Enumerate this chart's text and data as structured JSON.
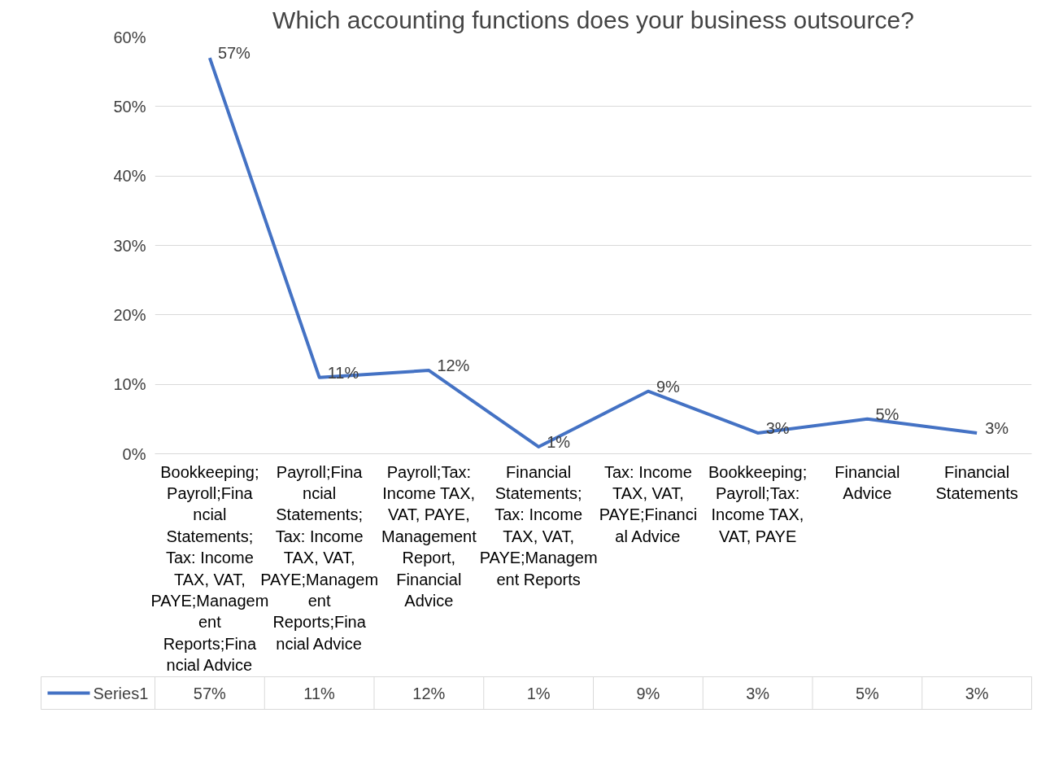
{
  "chart_data": {
    "type": "line",
    "title": "Which accounting functions does your business outsource?",
    "categories": [
      "Bookkeeping;Payroll;Financial Statements; Tax: Income TAX, VAT, PAYE;Management Reports;Financial Advice",
      "Payroll;Financial Statements; Tax: Income TAX, VAT, PAYE;Management Reports;Financial Advice",
      "Payroll;Tax: Income TAX, VAT, PAYE, Management Report, Financial Advice",
      "Financial Statements; Tax: Income TAX, VAT, PAYE;Management Reports",
      "Tax: Income TAX, VAT, PAYE;Financial Advice",
      "Bookkeeping;Payroll;Tax: Income TAX, VAT, PAYE",
      "Financial Advice",
      "Financial Statements"
    ],
    "series": [
      {
        "name": "Series1",
        "color": "#4472c4",
        "values": [
          57,
          11,
          12,
          1,
          9,
          3,
          5,
          3
        ],
        "value_labels": [
          "57%",
          "11%",
          "12%",
          "1%",
          "9%",
          "3%",
          "5%",
          "3%"
        ]
      }
    ],
    "ylim": [
      0,
      60
    ],
    "yticks": [
      {
        "value": 0,
        "label": "0%"
      },
      {
        "value": 10,
        "label": "10%"
      },
      {
        "value": 20,
        "label": "20%"
      },
      {
        "value": 30,
        "label": "30%"
      },
      {
        "value": 40,
        "label": "40%"
      },
      {
        "value": 50,
        "label": "50%"
      },
      {
        "value": 60,
        "label": "60%"
      }
    ],
    "grid": "y",
    "legend": "bottom",
    "marker": "none",
    "line_style": "solid"
  }
}
